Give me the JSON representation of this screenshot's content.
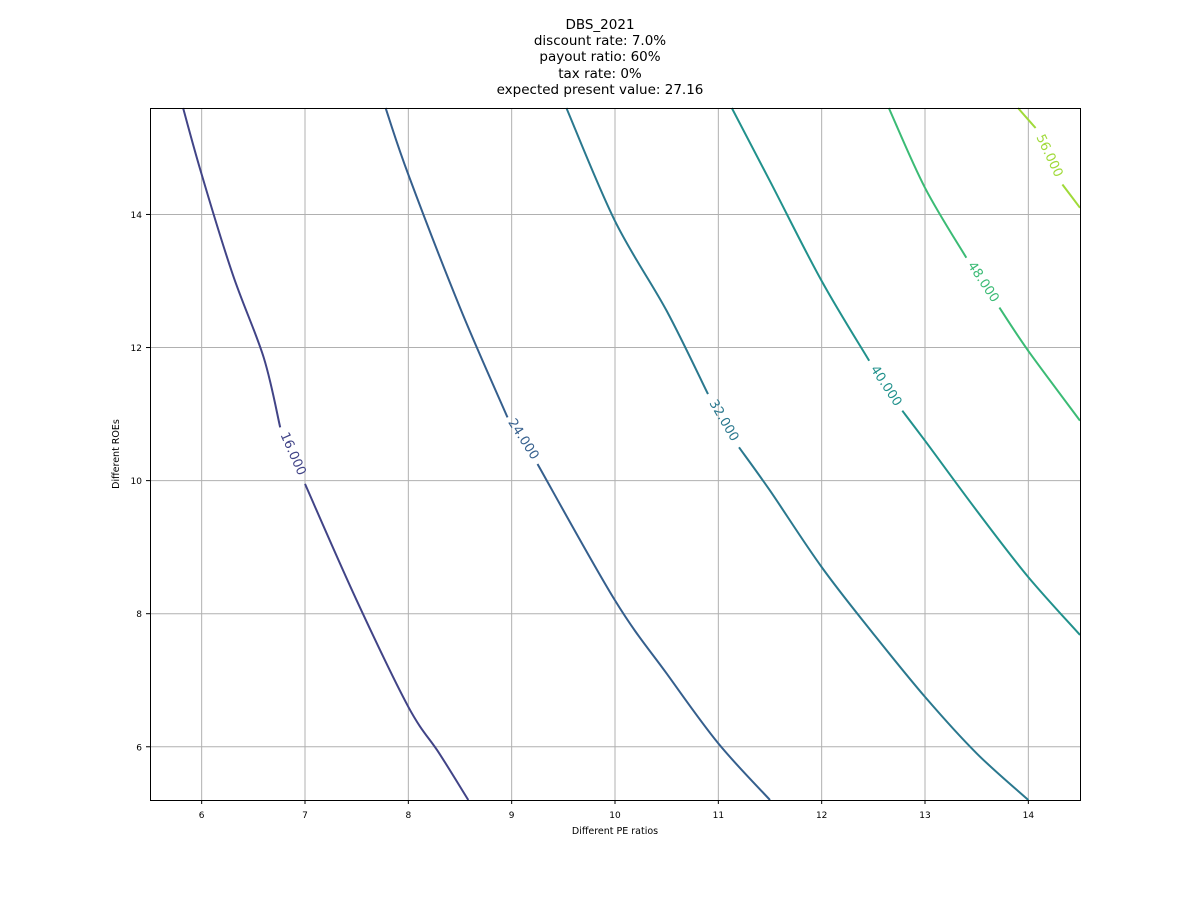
{
  "chart_data": {
    "type": "contour",
    "title_lines": [
      "DBS_2021",
      "discount rate: 7.0%",
      "payout ratio: 60%",
      "tax rate: 0%",
      "expected present value: 27.16"
    ],
    "xlabel": "Different PE ratios",
    "ylabel": "Different ROEs",
    "xlim": [
      5.5,
      14.5
    ],
    "ylim": [
      5.2,
      15.6
    ],
    "x_ticks": [
      "6",
      "7",
      "8",
      "9",
      "10",
      "11",
      "12",
      "13",
      "14"
    ],
    "y_ticks": [
      "6",
      "8",
      "10",
      "12",
      "14"
    ],
    "grid": true,
    "levels": [
      {
        "value": 16,
        "label": "16.000",
        "color": "#414487",
        "points": [
          [
            5.82,
            15.6
          ],
          [
            6.0,
            14.6
          ],
          [
            6.3,
            13.1
          ],
          [
            6.6,
            11.85
          ],
          [
            6.76,
            10.8
          ],
          [
            7.0,
            9.95
          ],
          [
            7.5,
            8.2
          ],
          [
            8.0,
            6.6
          ],
          [
            8.3,
            5.9
          ],
          [
            8.58,
            5.2
          ]
        ],
        "gap": [
          6.76,
          10.8,
          7.0,
          9.95
        ],
        "label_at": [
          6.88,
          10.4
        ]
      },
      {
        "value": 24,
        "label": "24.000",
        "color": "#355f8d",
        "points": [
          [
            7.78,
            15.6
          ],
          [
            8.0,
            14.6
          ],
          [
            8.5,
            12.6
          ],
          [
            8.96,
            10.95
          ],
          [
            9.25,
            10.25
          ],
          [
            10.0,
            8.2
          ],
          [
            10.5,
            7.1
          ],
          [
            11.0,
            6.05
          ],
          [
            11.5,
            5.2
          ]
        ],
        "gap": [
          8.96,
          10.95,
          9.25,
          10.25
        ],
        "label_at": [
          9.11,
          10.62
        ]
      },
      {
        "value": 32,
        "label": "32.000",
        "color": "#2a788e",
        "points": [
          [
            9.53,
            15.6
          ],
          [
            10.0,
            13.9
          ],
          [
            10.5,
            12.55
          ],
          [
            10.9,
            11.3
          ],
          [
            11.2,
            10.5
          ],
          [
            11.5,
            9.85
          ],
          [
            12.0,
            8.7
          ],
          [
            12.5,
            7.7
          ],
          [
            13.0,
            6.75
          ],
          [
            13.5,
            5.9
          ],
          [
            14.0,
            5.2
          ]
        ],
        "gap": [
          10.9,
          11.3,
          11.2,
          10.5
        ],
        "label_at": [
          11.05,
          10.9
        ]
      },
      {
        "value": 40,
        "label": "40.000",
        "color": "#21918c",
        "points": [
          [
            11.13,
            15.6
          ],
          [
            11.5,
            14.5
          ],
          [
            12.0,
            13.0
          ],
          [
            12.46,
            11.8
          ],
          [
            12.78,
            11.05
          ],
          [
            13.0,
            10.6
          ],
          [
            13.5,
            9.55
          ],
          [
            14.0,
            8.55
          ],
          [
            14.5,
            7.68
          ]
        ],
        "gap": [
          12.46,
          11.8,
          12.78,
          11.05
        ],
        "label_at": [
          12.62,
          11.42
        ]
      },
      {
        "value": 48,
        "label": "48.000",
        "color": "#3bbb75",
        "points": [
          [
            12.65,
            15.6
          ],
          [
            13.0,
            14.4
          ],
          [
            13.4,
            13.35
          ],
          [
            13.72,
            12.6
          ],
          [
            14.0,
            11.95
          ],
          [
            14.5,
            10.9
          ]
        ],
        "gap": [
          13.4,
          13.35,
          13.72,
          12.6
        ],
        "label_at": [
          13.56,
          12.98
        ]
      },
      {
        "value": 56,
        "label": "56.000",
        "color": "#a0da39",
        "points": [
          [
            13.9,
            15.6
          ],
          [
            14.07,
            15.3
          ],
          [
            14.33,
            14.45
          ],
          [
            14.5,
            14.1
          ]
        ],
        "gap": [
          14.07,
          15.3,
          14.33,
          14.45
        ],
        "label_at": [
          14.2,
          14.88
        ]
      }
    ]
  }
}
